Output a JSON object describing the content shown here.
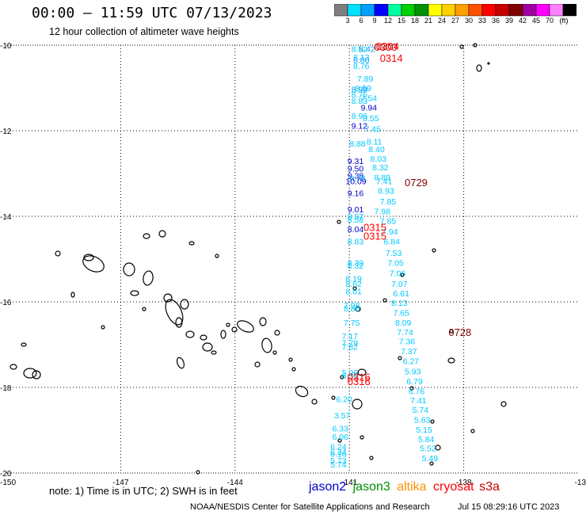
{
  "header": {
    "title": "00:00 — 11:59 UTC 07/13/2023",
    "subtitle": "12 hour collection of altimeter wave heights"
  },
  "color_scale": {
    "colors": [
      "#7f7f7f",
      "#00e0ff",
      "#00a0ff",
      "#0000ff",
      "#00ffa0",
      "#00d000",
      "#009000",
      "#ffff00",
      "#ffd000",
      "#ffa000",
      "#ff5000",
      "#ff0000",
      "#c80000",
      "#800000",
      "#a000a0",
      "#ff00ff",
      "#ff80ff",
      "#000000"
    ],
    "labels": [
      "3",
      "6",
      "9",
      "12",
      "15",
      "18",
      "21",
      "24",
      "27",
      "30",
      "33",
      "36",
      "39",
      "42",
      "45",
      "70",
      "(ft)"
    ]
  },
  "map": {
    "lon_labels": [
      "-150",
      "-147",
      "-144",
      "-141",
      "-138",
      "-13"
    ],
    "lat_labels": [
      "-10",
      "-12",
      "-14",
      "-16",
      "-18",
      "-20"
    ],
    "passes": [
      {
        "label": "0304",
        "color": "#ff0000",
        "lon": -140.3,
        "lat": -10.02
      },
      {
        "label": "0300",
        "color": "#c80000",
        "lon": -140.35,
        "lat": -10.04
      },
      {
        "label": "0314",
        "color": "#ff0000",
        "lon": -140.2,
        "lat": -10.3
      },
      {
        "label": "0729",
        "color": "#800000",
        "lon": -139.55,
        "lat": -13.2
      },
      {
        "label": "0315",
        "color": "#ff0000",
        "lon": -140.63,
        "lat": -14.25
      },
      {
        "label": "0315",
        "color": "#ff0000",
        "lon": -140.63,
        "lat": -14.45
      },
      {
        "label": "0728",
        "color": "#800000",
        "lon": -138.4,
        "lat": -16.7
      },
      {
        "label": "0316",
        "color": "#ff0000",
        "lon": -141.05,
        "lat": -17.75
      },
      {
        "label": "0316",
        "color": "#ff0000",
        "lon": -141.05,
        "lat": -17.85
      }
    ],
    "points": [
      {
        "v": "8.52",
        "c": "#00c8ff",
        "lon": -140.95,
        "lat": -10.08
      },
      {
        "v": "8.42",
        "c": "#00a0ff",
        "lon": -140.75,
        "lat": -10.08
      },
      {
        "v": "8.13",
        "c": "#00c8ff",
        "lon": -140.9,
        "lat": -10.28
      },
      {
        "v": "8.00",
        "c": "#00a0ff",
        "lon": -140.9,
        "lat": -10.34
      },
      {
        "v": "8.76",
        "c": "#00c8ff",
        "lon": -140.9,
        "lat": -10.48
      },
      {
        "v": "7.89",
        "c": "#00c8ff",
        "lon": -140.8,
        "lat": -10.78
      },
      {
        "v": "8.59",
        "c": "#00c8ff",
        "lon": -140.85,
        "lat": -11.0
      },
      {
        "v": "8.99",
        "c": "#00a0ff",
        "lon": -140.95,
        "lat": -11.03
      },
      {
        "v": "8.75",
        "c": "#00c8ff",
        "lon": -140.95,
        "lat": -11.15
      },
      {
        "v": "7.54",
        "c": "#00c8ff",
        "lon": -140.7,
        "lat": -11.23
      },
      {
        "v": "8.83",
        "c": "#00c8ff",
        "lon": -140.95,
        "lat": -11.3
      },
      {
        "v": "9.94",
        "c": "#0000c8",
        "lon": -140.7,
        "lat": -11.45
      },
      {
        "v": "8.96",
        "c": "#00c8ff",
        "lon": -140.95,
        "lat": -11.65
      },
      {
        "v": "8.55",
        "c": "#00c8ff",
        "lon": -140.65,
        "lat": -11.7
      },
      {
        "v": "9.12",
        "c": "#0000c8",
        "lon": -140.95,
        "lat": -11.88
      },
      {
        "v": "7.45",
        "c": "#00c8ff",
        "lon": -140.6,
        "lat": -11.95
      },
      {
        "v": "8.11",
        "c": "#00c8ff",
        "lon": -140.55,
        "lat": -12.25
      },
      {
        "v": "8.88",
        "c": "#00c8ff",
        "lon": -141.0,
        "lat": -12.3
      },
      {
        "v": "8.40",
        "c": "#00c8ff",
        "lon": -140.5,
        "lat": -12.43
      },
      {
        "v": "8.03",
        "c": "#00c8ff",
        "lon": -140.45,
        "lat": -12.65
      },
      {
        "v": "9.31",
        "c": "#0000c8",
        "lon": -141.05,
        "lat": -12.7
      },
      {
        "v": "8.32",
        "c": "#00c8ff",
        "lon": -140.4,
        "lat": -12.85
      },
      {
        "v": "9.50",
        "c": "#0000c8",
        "lon": -141.05,
        "lat": -12.88
      },
      {
        "v": "9.38",
        "c": "#0000c8",
        "lon": -141.05,
        "lat": -13.05
      },
      {
        "v": "8.89",
        "c": "#00c8ff",
        "lon": -140.35,
        "lat": -13.08
      },
      {
        "v": "8.78",
        "c": "#00c8ff",
        "lon": -141.0,
        "lat": -13.1
      },
      {
        "v": "10.09",
        "c": "#0000c8",
        "lon": -141.1,
        "lat": -13.18
      },
      {
        "v": "7.41",
        "c": "#00c8ff",
        "lon": -140.3,
        "lat": -13.18
      },
      {
        "v": "8.93",
        "c": "#00c8ff",
        "lon": -140.25,
        "lat": -13.4
      },
      {
        "v": "9.16",
        "c": "#0000c8",
        "lon": -141.05,
        "lat": -13.45
      },
      {
        "v": "7.85",
        "c": "#00c8ff",
        "lon": -140.2,
        "lat": -13.65
      },
      {
        "v": "9.01",
        "c": "#0000c8",
        "lon": -141.05,
        "lat": -13.83
      },
      {
        "v": "7.98",
        "c": "#00c8ff",
        "lon": -140.35,
        "lat": -13.88
      },
      {
        "v": "8.57",
        "c": "#00c8ff",
        "lon": -141.05,
        "lat": -14.0
      },
      {
        "v": "8.58",
        "c": "#00c8ff",
        "lon": -141.05,
        "lat": -14.07
      },
      {
        "v": "7.85",
        "c": "#00c8ff",
        "lon": -140.2,
        "lat": -14.1
      },
      {
        "v": "8.04",
        "c": "#0000c8",
        "lon": -141.05,
        "lat": -14.3
      },
      {
        "v": "7.94",
        "c": "#00c8ff",
        "lon": -140.15,
        "lat": -14.35
      },
      {
        "v": "6.84",
        "c": "#00c8ff",
        "lon": -140.1,
        "lat": -14.58
      },
      {
        "v": "8.83",
        "c": "#00c8ff",
        "lon": -141.05,
        "lat": -14.58
      },
      {
        "v": "7.53",
        "c": "#00c8ff",
        "lon": -140.05,
        "lat": -14.85
      },
      {
        "v": "7.05",
        "c": "#00c8ff",
        "lon": -140.0,
        "lat": -15.08
      },
      {
        "v": "8.39",
        "c": "#00c8ff",
        "lon": -141.05,
        "lat": -15.08
      },
      {
        "v": "8.32",
        "c": "#00c8ff",
        "lon": -141.05,
        "lat": -15.15
      },
      {
        "v": "7.06",
        "c": "#00c8ff",
        "lon": -139.95,
        "lat": -15.32
      },
      {
        "v": "8.19",
        "c": "#00c8ff",
        "lon": -141.1,
        "lat": -15.45
      },
      {
        "v": "7.07",
        "c": "#00c8ff",
        "lon": -139.9,
        "lat": -15.57
      },
      {
        "v": "8.62",
        "c": "#00c8ff",
        "lon": -141.1,
        "lat": -15.57
      },
      {
        "v": "8.01",
        "c": "#00c8ff",
        "lon": -141.1,
        "lat": -15.75
      },
      {
        "v": "6.61",
        "c": "#00c8ff",
        "lon": -139.85,
        "lat": -15.8
      },
      {
        "v": "8.13",
        "c": "#00c8ff",
        "lon": -139.9,
        "lat": -16.02
      },
      {
        "v": "7.98",
        "c": "#00c8ff",
        "lon": -141.15,
        "lat": -16.07
      },
      {
        "v": "8.86",
        "c": "#00c8ff",
        "lon": -141.15,
        "lat": -16.15
      },
      {
        "v": "7.65",
        "c": "#00c8ff",
        "lon": -139.85,
        "lat": -16.25
      },
      {
        "v": "8.09",
        "c": "#00c8ff",
        "lon": -139.8,
        "lat": -16.48
      },
      {
        "v": "7.75",
        "c": "#00c8ff",
        "lon": -141.15,
        "lat": -16.48
      },
      {
        "v": "7.74",
        "c": "#00c8ff",
        "lon": -139.75,
        "lat": -16.7
      },
      {
        "v": "7.17",
        "c": "#00c8ff",
        "lon": -141.2,
        "lat": -16.8
      },
      {
        "v": "7.36",
        "c": "#00c8ff",
        "lon": -139.7,
        "lat": -16.92
      },
      {
        "v": "7.79",
        "c": "#00c8ff",
        "lon": -141.2,
        "lat": -16.95
      },
      {
        "v": "7.82",
        "c": "#00c8ff",
        "lon": -141.2,
        "lat": -17.05
      },
      {
        "v": "7.37",
        "c": "#00c8ff",
        "lon": -139.65,
        "lat": -17.15
      },
      {
        "v": "6.27",
        "c": "#00c8ff",
        "lon": -139.6,
        "lat": -17.38
      },
      {
        "v": "5.93",
        "c": "#00c8ff",
        "lon": -139.55,
        "lat": -17.62
      },
      {
        "v": "5.96",
        "c": "#00c8ff",
        "lon": -141.2,
        "lat": -17.65
      },
      {
        "v": "6.36",
        "c": "#00c8ff",
        "lon": -141.2,
        "lat": -17.72
      },
      {
        "v": "6.79",
        "c": "#00c8ff",
        "lon": -139.5,
        "lat": -17.85
      },
      {
        "v": "6.76",
        "c": "#00c8ff",
        "lon": -139.45,
        "lat": -18.08
      },
      {
        "v": "6.20",
        "c": "#00c8ff",
        "lon": -141.35,
        "lat": -18.27
      },
      {
        "v": "7.41",
        "c": "#00c8ff",
        "lon": -139.4,
        "lat": -18.3
      },
      {
        "v": "5.74",
        "c": "#00c8ff",
        "lon": -139.35,
        "lat": -18.52
      },
      {
        "v": "3.57",
        "c": "#00c8ff",
        "lon": -141.4,
        "lat": -18.65
      },
      {
        "v": "5.63",
        "c": "#00c8ff",
        "lon": -139.3,
        "lat": -18.75
      },
      {
        "v": "6.33",
        "c": "#00c8ff",
        "lon": -141.45,
        "lat": -18.95
      },
      {
        "v": "5.15",
        "c": "#00c8ff",
        "lon": -139.25,
        "lat": -18.98
      },
      {
        "v": "6.06",
        "c": "#00c8ff",
        "lon": -141.45,
        "lat": -19.15
      },
      {
        "v": "5.84",
        "c": "#00c8ff",
        "lon": -139.2,
        "lat": -19.2
      },
      {
        "v": "6.24",
        "c": "#00c8ff",
        "lon": -141.5,
        "lat": -19.38
      },
      {
        "v": "5.52",
        "c": "#00c8ff",
        "lon": -139.15,
        "lat": -19.42
      },
      {
        "v": "6.34",
        "c": "#00c8ff",
        "lon": -141.5,
        "lat": -19.5
      },
      {
        "v": "6.16",
        "c": "#00c8ff",
        "lon": -141.5,
        "lat": -19.55
      },
      {
        "v": "5.49",
        "c": "#00c8ff",
        "lon": -139.1,
        "lat": -19.65
      },
      {
        "v": "5.73",
        "c": "#00c8ff",
        "lon": -141.5,
        "lat": -19.7
      },
      {
        "v": "5.74",
        "c": "#00c8ff",
        "lon": -141.5,
        "lat": -19.8
      }
    ]
  },
  "footer": {
    "note": "note: 1) Time is in UTC; 2) SWH is in feet",
    "legend": [
      {
        "name": "jason2",
        "color": "#0000c8"
      },
      {
        "name": "jason3",
        "color": "#009000"
      },
      {
        "name": "altika",
        "color": "#ff9000"
      },
      {
        "name": "cryosat",
        "color": "#ff0000"
      },
      {
        "name": "s3a",
        "color": "#c80000"
      }
    ],
    "credit": "NOAA/NESDIS Center for Satellite Applications and Research",
    "timestamp": "Jul 15 08:29:16 UTC 2023"
  }
}
